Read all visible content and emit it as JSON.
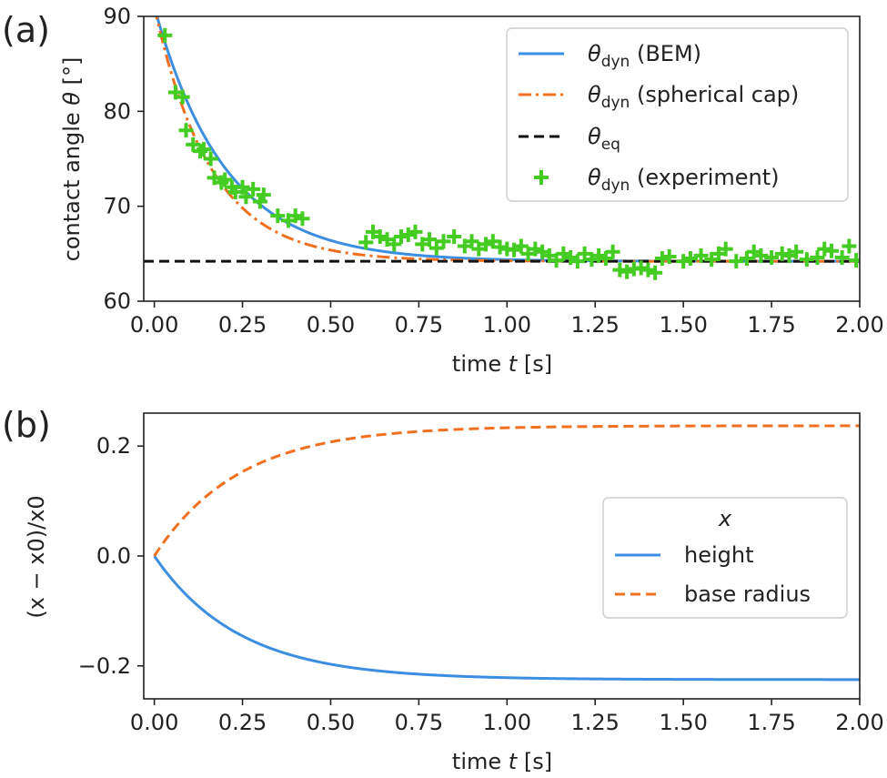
{
  "colors": {
    "bem": "#3b8ee0",
    "cap": "#f07020",
    "eq": "#111111",
    "exp": "#44cc22",
    "height": "#3b8ee0",
    "base": "#f07020"
  },
  "chart_data": [
    {
      "panel": "(a)",
      "type": "line",
      "xlabel_prefix": "time ",
      "xlabel_var": "t",
      "xlabel_unit": " [s]",
      "ylabel_prefix": "contact angle ",
      "ylabel_var": "θ",
      "ylabel_unit": " [°]",
      "xlim": [
        -0.03,
        2.0
      ],
      "ylim": [
        60,
        90
      ],
      "xticks": [
        0.0,
        0.25,
        0.5,
        0.75,
        1.0,
        1.25,
        1.5,
        1.75,
        2.0
      ],
      "xtick_labels": [
        "0.00",
        "0.25",
        "0.50",
        "0.75",
        "1.00",
        "1.25",
        "1.50",
        "1.75",
        "2.00"
      ],
      "yticks": [
        60,
        70,
        80,
        90
      ],
      "ytick_labels": [
        "60",
        "70",
        "80",
        "90"
      ],
      "legend_position": "top-right",
      "legend": {
        "bem": {
          "base": "θ",
          "sub": "dyn",
          "rest": " (BEM)"
        },
        "cap": {
          "base": "θ",
          "sub": "dyn",
          "rest": " (spherical cap)"
        },
        "eq": {
          "base": "θ",
          "sub": "eq",
          "rest": ""
        },
        "exp": {
          "base": "θ",
          "sub": "dyn",
          "rest": " (experiment)"
        }
      },
      "series": [
        {
          "name": "θdyn (BEM)",
          "style": "solid",
          "model": {
            "kind": "exp",
            "start": 91,
            "end": 64.2,
            "tau": 0.2
          }
        },
        {
          "name": "θdyn (spherical cap)",
          "style": "dashdot",
          "model": {
            "kind": "exp",
            "start": 91,
            "end": 64.2,
            "tau": 0.16
          }
        },
        {
          "name": "θeq",
          "style": "dashed",
          "value": 64.2
        },
        {
          "name": "θdyn (experiment)",
          "style": "markers",
          "x": [
            0.03,
            0.06,
            0.08,
            0.09,
            0.11,
            0.13,
            0.14,
            0.16,
            0.17,
            0.19,
            0.2,
            0.22,
            0.23,
            0.25,
            0.26,
            0.28,
            0.3,
            0.31,
            0.35,
            0.38,
            0.4,
            0.42,
            0.6,
            0.62,
            0.64,
            0.66,
            0.68,
            0.7,
            0.72,
            0.74,
            0.76,
            0.78,
            0.8,
            0.82,
            0.85,
            0.88,
            0.9,
            0.92,
            0.94,
            0.96,
            0.98,
            1.0,
            1.02,
            1.04,
            1.06,
            1.08,
            1.1,
            1.12,
            1.14,
            1.16,
            1.18,
            1.2,
            1.22,
            1.24,
            1.26,
            1.28,
            1.3,
            1.32,
            1.34,
            1.36,
            1.38,
            1.4,
            1.42,
            1.44,
            1.46,
            1.5,
            1.52,
            1.55,
            1.58,
            1.6,
            1.62,
            1.65,
            1.68,
            1.7,
            1.72,
            1.75,
            1.78,
            1.8,
            1.82,
            1.85,
            1.88,
            1.9,
            1.92,
            1.95,
            1.97,
            1.99
          ],
          "y": [
            88,
            82,
            81.5,
            78,
            76.5,
            75.8,
            76,
            75,
            73,
            72.5,
            72.8,
            72,
            71.5,
            72,
            71,
            71.8,
            70.5,
            71.2,
            69,
            68.5,
            69,
            68.7,
            66.2,
            67.3,
            66.8,
            66.5,
            66,
            66.8,
            67,
            67.3,
            66,
            66.5,
            65.6,
            66.3,
            66.8,
            65.8,
            66.3,
            65.5,
            66,
            66.3,
            65.7,
            65.5,
            65.4,
            65.8,
            65,
            65.5,
            65.2,
            64.8,
            64.3,
            65,
            64.6,
            64.2,
            65,
            64.4,
            64.8,
            64.5,
            65.2,
            63.3,
            63.1,
            63.4,
            63.5,
            63.3,
            63.0,
            64.5,
            64.7,
            64.2,
            64.5,
            64.8,
            64.4,
            65,
            65.5,
            64.2,
            64.5,
            65.2,
            64.8,
            64.6,
            65,
            64.8,
            65.2,
            64.4,
            64.6,
            65.5,
            65.3,
            64.6,
            65.8,
            64.3
          ]
        }
      ]
    },
    {
      "panel": "(b)",
      "type": "line",
      "xlabel_prefix": "time ",
      "xlabel_var": "t",
      "xlabel_unit": " [s]",
      "ylabel": "(x − x0)/x0",
      "xlim": [
        -0.03,
        2.0
      ],
      "ylim": [
        -0.26,
        0.26
      ],
      "xticks": [
        0.0,
        0.25,
        0.5,
        0.75,
        1.0,
        1.25,
        1.5,
        1.75,
        2.0
      ],
      "xtick_labels": [
        "0.00",
        "0.25",
        "0.50",
        "0.75",
        "1.00",
        "1.25",
        "1.50",
        "1.75",
        "2.00"
      ],
      "yticks": [
        -0.2,
        0.0,
        0.2
      ],
      "ytick_labels": [
        "−0.2",
        "0.0",
        "0.2"
      ],
      "legend_position": "center-right",
      "legend_title": "x",
      "legend": {
        "height": "height",
        "base": "base radius"
      },
      "series": [
        {
          "name": "height",
          "style": "solid",
          "model": {
            "kind": "exp",
            "start": 0.0,
            "end": -0.225,
            "tau": 0.24
          }
        },
        {
          "name": "base radius",
          "style": "dashed",
          "model": {
            "kind": "exp",
            "start": 0.0,
            "end": 0.237,
            "tau": 0.24
          }
        }
      ]
    }
  ]
}
